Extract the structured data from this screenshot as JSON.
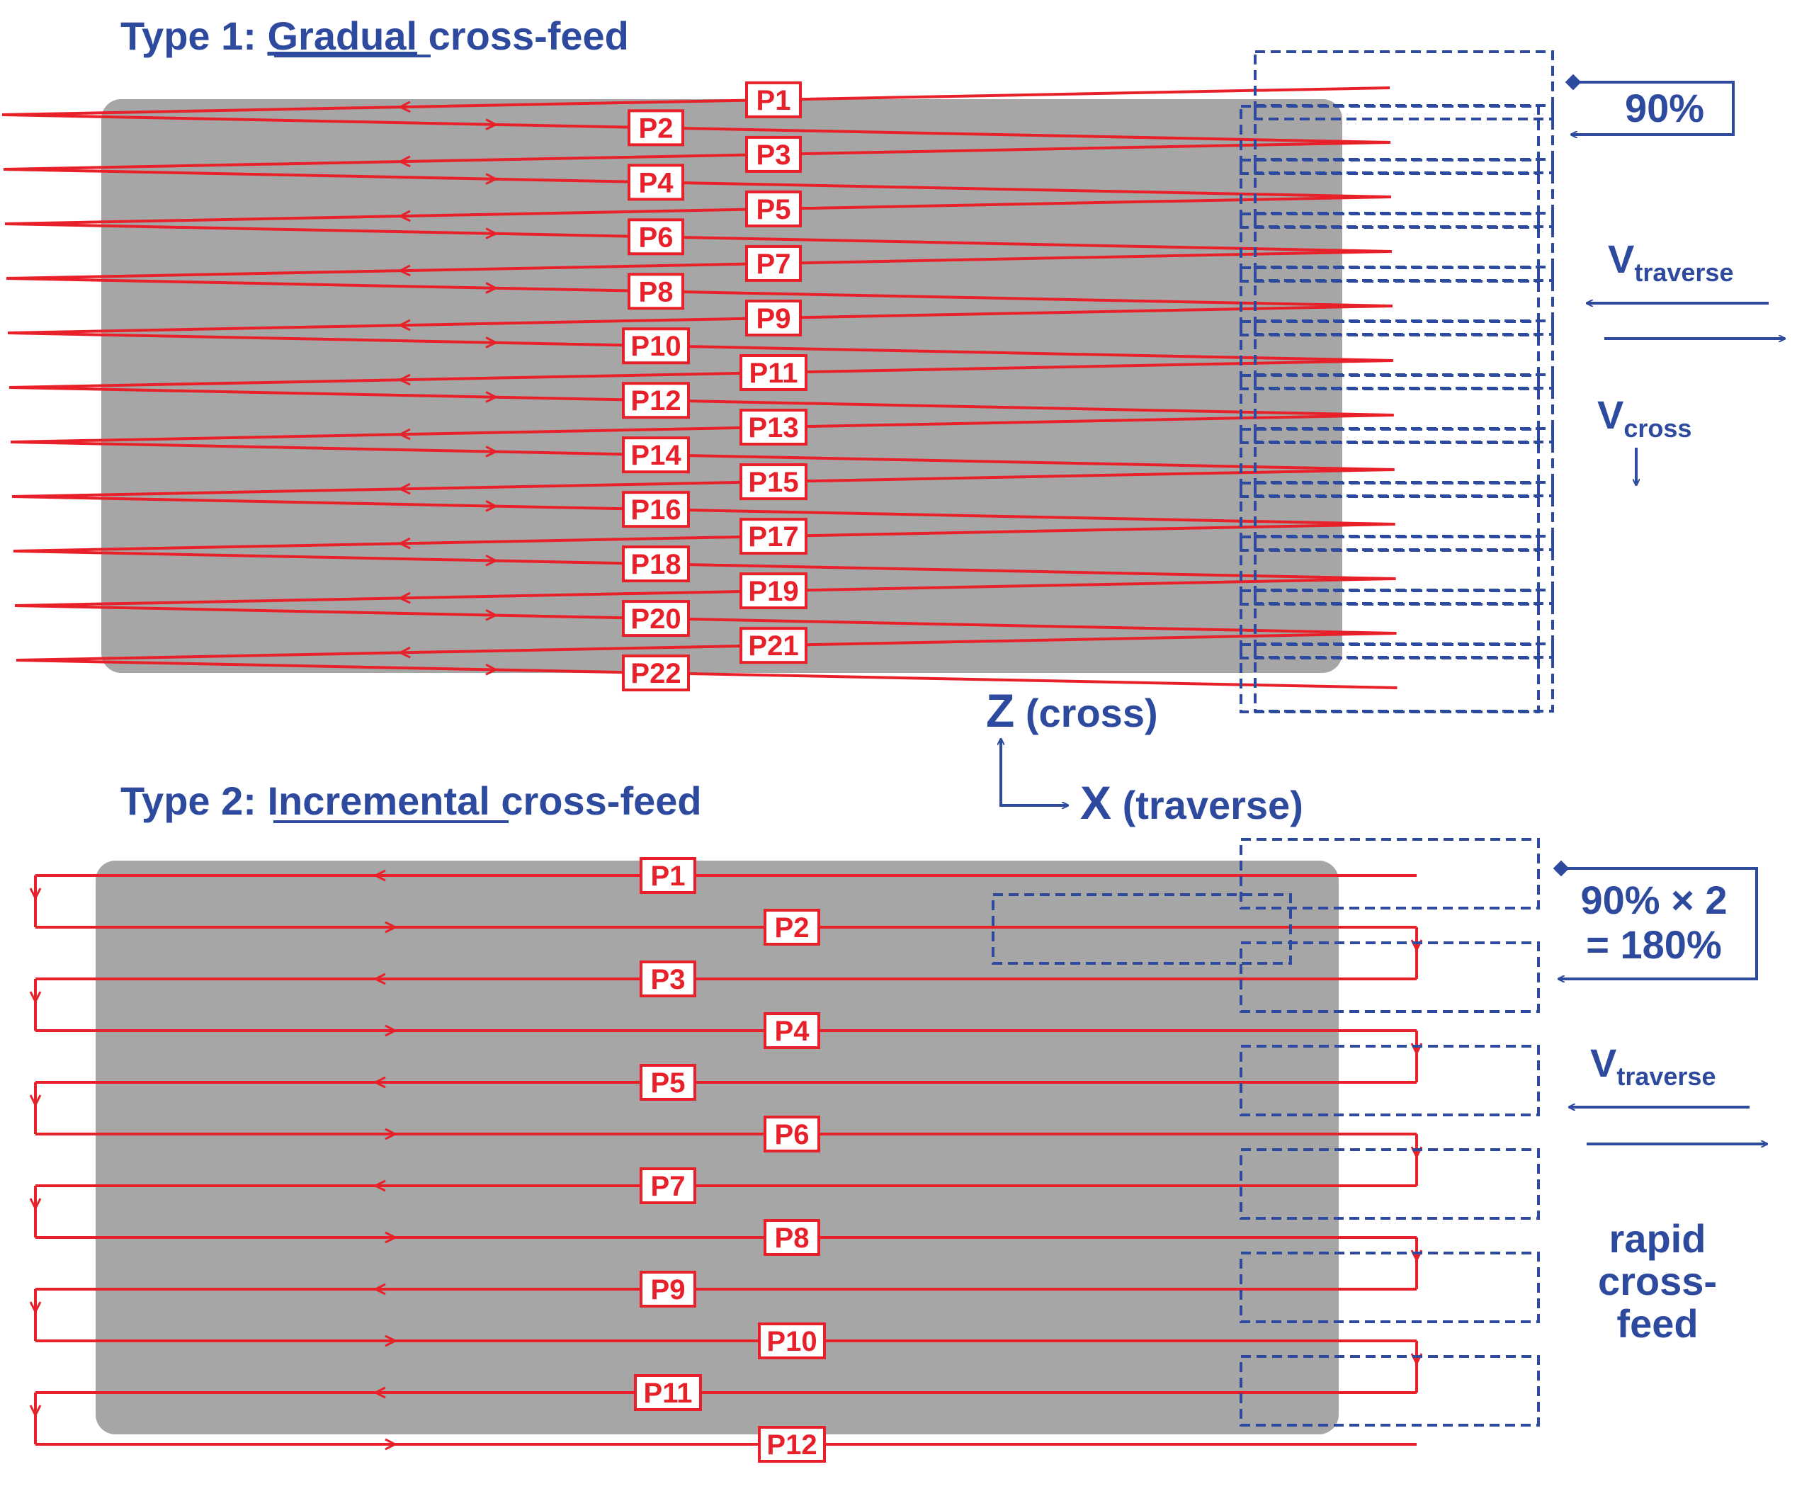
{
  "type1": {
    "title_prefix": "Type 1: ",
    "title_keyword": "Gradual",
    "title_suffix": " cross-feed",
    "passes": [
      "P1",
      "P2",
      "P3",
      "P4",
      "P5",
      "P6",
      "P7",
      "P8",
      "P9",
      "P10",
      "P11",
      "P12",
      "P13",
      "P14",
      "P15",
      "P16",
      "P17",
      "P18",
      "P19",
      "P20",
      "P21",
      "P22"
    ],
    "overlap_label": "90%",
    "traverse_label_main": "V",
    "traverse_label_sub": "traverse",
    "cross_label_main": "V",
    "cross_label_sub": "cross"
  },
  "axes": {
    "z_letter": "Z",
    "z_text": " (cross)",
    "x_letter": "X",
    "x_text": " (traverse)"
  },
  "type2": {
    "title_prefix": "Type 2: ",
    "title_keyword": "Incremental",
    "title_suffix": " cross-feed",
    "passes": [
      "P1",
      "P2",
      "P3",
      "P4",
      "P5",
      "P6",
      "P7",
      "P8",
      "P9",
      "P10",
      "P11",
      "P12"
    ],
    "overlap_line1": "90% × 2",
    "overlap_line2": "= 180%",
    "traverse_label_main": "V",
    "traverse_label_sub": "traverse",
    "rapid_line1": "rapid",
    "rapid_line2": "cross-",
    "rapid_line3": "feed"
  },
  "colors": {
    "path": "#e8202a",
    "blue": "#2e4a9e",
    "plate": "#a6a6a6",
    "background": "#ffffff"
  }
}
